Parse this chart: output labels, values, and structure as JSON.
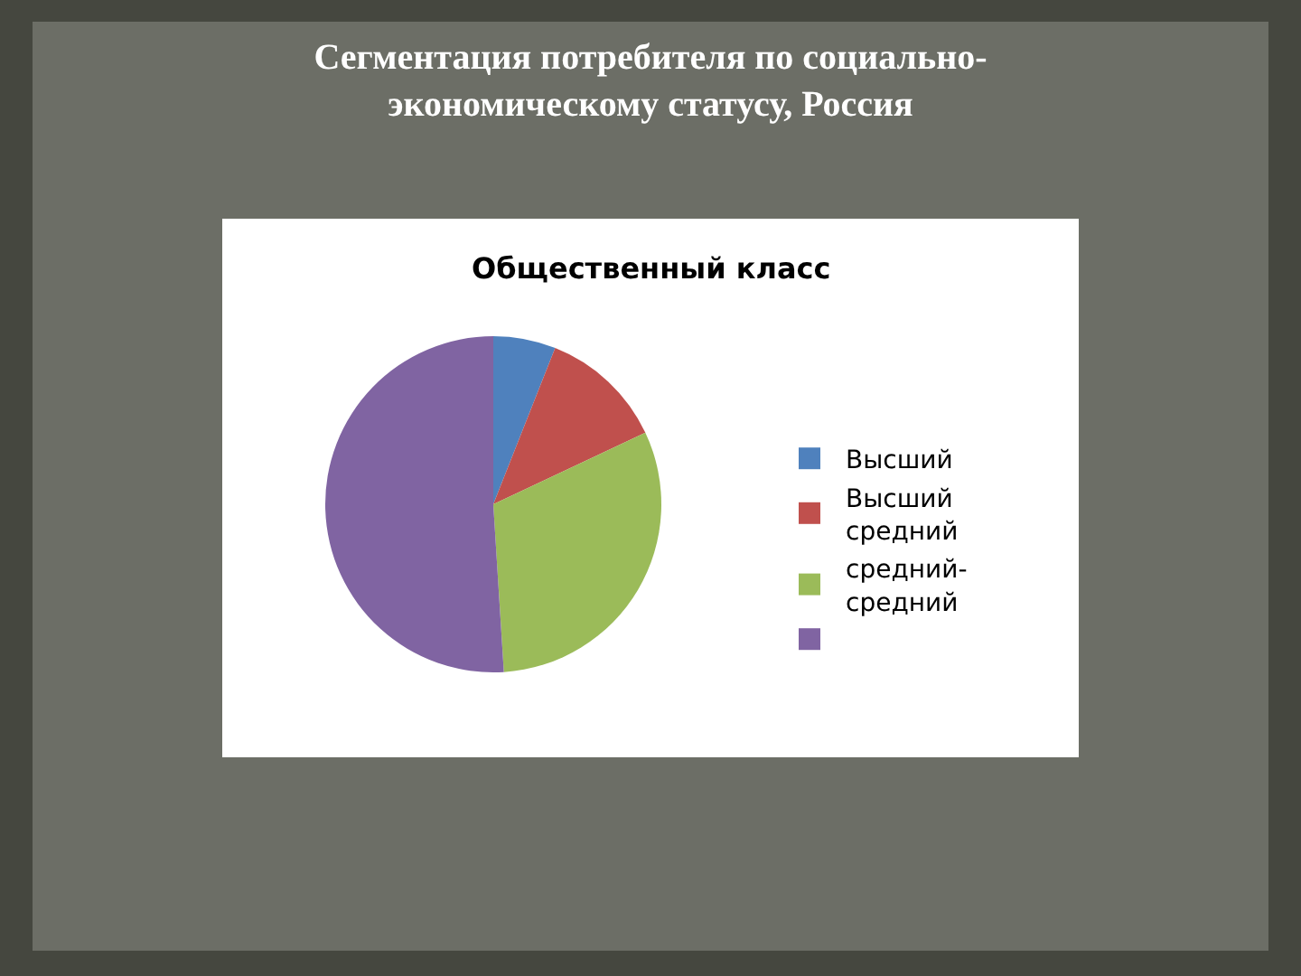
{
  "chart_data": {
    "type": "pie",
    "title": "Сегментация потребителя по социально-экономическому статусу, Россия",
    "subtitle": "Общественный класс",
    "categories": [
      "Высший",
      "Высший средний",
      "средний-средний",
      null
    ],
    "values": [
      6,
      12,
      31,
      51
    ],
    "colors": [
      "#4f81bd",
      "#c0504d",
      "#9bbb59",
      "#8064a2"
    ],
    "legend": "right"
  }
}
